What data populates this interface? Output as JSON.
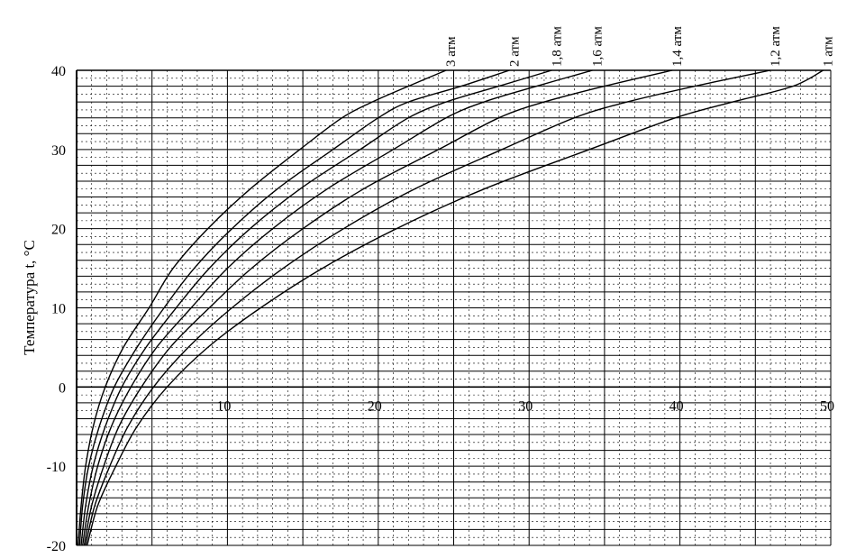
{
  "chart_data": {
    "type": "line",
    "title": "",
    "xlabel": "",
    "ylabel": "Температура t, °С",
    "xlim": [
      0,
      50
    ],
    "ylim": [
      -20,
      40
    ],
    "x_ticks": [
      "10",
      "20",
      "30",
      "40",
      "50"
    ],
    "y_ticks": [
      "40",
      "30",
      "20",
      "10",
      "0",
      "-10",
      "-20"
    ],
    "grid": true,
    "series": [
      {
        "name": "3 атм",
        "points": [
          [
            0.1,
            -20
          ],
          [
            0.3,
            -15
          ],
          [
            0.6,
            -10
          ],
          [
            1.1,
            -5
          ],
          [
            1.9,
            0
          ],
          [
            3.1,
            5
          ],
          [
            4.8,
            10
          ],
          [
            6.4,
            15
          ],
          [
            8.7,
            20
          ],
          [
            11.5,
            25
          ],
          [
            14.8,
            30
          ],
          [
            17.6,
            34
          ],
          [
            19.6,
            36
          ],
          [
            22.0,
            38
          ],
          [
            24.5,
            40
          ]
        ]
      },
      {
        "name": "2 атм",
        "points": [
          [
            0.2,
            -20
          ],
          [
            0.4,
            -15
          ],
          [
            0.8,
            -10
          ],
          [
            1.5,
            -5
          ],
          [
            2.5,
            0
          ],
          [
            4.0,
            5
          ],
          [
            5.8,
            10
          ],
          [
            7.8,
            15
          ],
          [
            10.3,
            20
          ],
          [
            13.3,
            25
          ],
          [
            17.0,
            30
          ],
          [
            20.0,
            34
          ],
          [
            22.0,
            36
          ],
          [
            25.5,
            38
          ],
          [
            28.7,
            40
          ]
        ]
      },
      {
        "name": "1,8 атм",
        "points": [
          [
            0.3,
            -20
          ],
          [
            0.6,
            -15
          ],
          [
            1.1,
            -10
          ],
          [
            1.9,
            -5
          ],
          [
            3.0,
            0
          ],
          [
            4.6,
            5
          ],
          [
            6.6,
            10
          ],
          [
            8.8,
            15
          ],
          [
            11.5,
            20
          ],
          [
            14.8,
            25
          ],
          [
            18.8,
            30
          ],
          [
            22.0,
            34
          ],
          [
            24.5,
            36
          ],
          [
            28.0,
            38
          ],
          [
            31.5,
            40
          ]
        ]
      },
      {
        "name": "1,6 атм",
        "points": [
          [
            0.4,
            -20
          ],
          [
            0.8,
            -15
          ],
          [
            1.4,
            -10
          ],
          [
            2.3,
            -5
          ],
          [
            3.6,
            0
          ],
          [
            5.3,
            5
          ],
          [
            7.6,
            10
          ],
          [
            10.0,
            15
          ],
          [
            13.0,
            20
          ],
          [
            16.6,
            25
          ],
          [
            21.0,
            30
          ],
          [
            24.5,
            34
          ],
          [
            27.0,
            36
          ],
          [
            30.5,
            38
          ],
          [
            34.2,
            40
          ]
        ]
      },
      {
        "name": "1,4 атм",
        "points": [
          [
            0.5,
            -20
          ],
          [
            1.0,
            -15
          ],
          [
            1.8,
            -10
          ],
          [
            2.8,
            -5
          ],
          [
            4.3,
            0
          ],
          [
            6.2,
            5
          ],
          [
            8.8,
            10
          ],
          [
            11.6,
            15
          ],
          [
            15.0,
            20
          ],
          [
            19.0,
            25
          ],
          [
            24.0,
            30
          ],
          [
            28.0,
            34
          ],
          [
            31.0,
            36
          ],
          [
            35.0,
            38
          ],
          [
            39.5,
            40
          ]
        ]
      },
      {
        "name": "1,2 атм",
        "points": [
          [
            0.6,
            -20
          ],
          [
            1.2,
            -15
          ],
          [
            2.2,
            -10
          ],
          [
            3.4,
            -5
          ],
          [
            5.1,
            0
          ],
          [
            7.4,
            5
          ],
          [
            10.3,
            10
          ],
          [
            13.7,
            15
          ],
          [
            17.7,
            20
          ],
          [
            22.4,
            25
          ],
          [
            28.2,
            30
          ],
          [
            33.0,
            34
          ],
          [
            36.5,
            36
          ],
          [
            41.0,
            38
          ],
          [
            46.0,
            40
          ]
        ]
      },
      {
        "name": "1 атм",
        "points": [
          [
            0.7,
            -20
          ],
          [
            1.4,
            -15
          ],
          [
            2.6,
            -10
          ],
          [
            4.0,
            -5
          ],
          [
            6.0,
            0
          ],
          [
            8.7,
            5
          ],
          [
            12.2,
            10
          ],
          [
            16.3,
            15
          ],
          [
            21.2,
            20
          ],
          [
            27.0,
            25
          ],
          [
            34.0,
            30
          ],
          [
            39.7,
            34
          ],
          [
            43.5,
            36
          ],
          [
            47.5,
            38
          ],
          [
            49.5,
            40
          ]
        ]
      }
    ]
  }
}
